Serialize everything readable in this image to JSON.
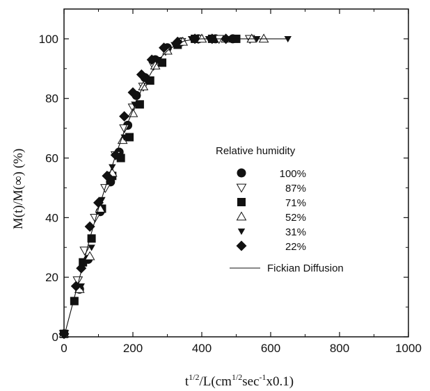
{
  "chart_data": {
    "type": "scatter",
    "xlabel": {
      "base": "t",
      "sup1": "1/2",
      "mid": "/L(cm",
      "sup2": "1/2",
      "mid2": "sec",
      "sup3": "-1",
      "tail": "x0.1)"
    },
    "ylabel": "M(t)/M(∞) (%)",
    "xlim": [
      0,
      1000
    ],
    "ylim": [
      0,
      110
    ],
    "xticks": [
      "0",
      "200",
      "400",
      "600",
      "800",
      "1000"
    ],
    "yticks": [
      "0",
      "20",
      "40",
      "60",
      "80",
      "100"
    ],
    "grid": false,
    "legend_placement": "right-middle",
    "legend_title": "Relative humidity",
    "series": [
      {
        "name": "100%",
        "marker": "circle-filled",
        "x": [
          0,
          45,
          70,
          105,
          135,
          160,
          185,
          210,
          235,
          265,
          300,
          340,
          390,
          440,
          490
        ],
        "y": [
          1,
          16,
          26,
          42,
          52,
          62,
          71,
          81,
          87,
          93,
          97,
          99,
          100,
          100,
          100
        ]
      },
      {
        "name": "87%",
        "marker": "triangle-down-open",
        "x": [
          0,
          40,
          60,
          90,
          120,
          150,
          175,
          200,
          230,
          260,
          295,
          340,
          390,
          450,
          540
        ],
        "y": [
          1,
          19,
          29,
          40,
          50,
          61,
          70,
          77,
          84,
          91,
          96,
          99,
          100,
          100,
          100
        ]
      },
      {
        "name": "71%",
        "marker": "square-filled",
        "x": [
          0,
          30,
          55,
          80,
          110,
          140,
          165,
          190,
          220,
          250,
          285,
          330,
          380,
          430,
          500
        ],
        "y": [
          1,
          12,
          25,
          33,
          43,
          54,
          60,
          67,
          78,
          86,
          92,
          98,
          100,
          100,
          100
        ]
      },
      {
        "name": "52%",
        "marker": "triangle-up-open",
        "x": [
          0,
          45,
          75,
          105,
          140,
          170,
          200,
          230,
          265,
          300,
          345,
          400,
          470,
          545,
          580
        ],
        "y": [
          1,
          16,
          27,
          43,
          55,
          66,
          75,
          84,
          91,
          96,
          99,
          100,
          100,
          100,
          100
        ]
      },
      {
        "name": "31%",
        "marker": "triangle-down-filled",
        "x": [
          0,
          50,
          80,
          110,
          140,
          175,
          205,
          240,
          275,
          320,
          370,
          420,
          480,
          560,
          650
        ],
        "y": [
          1,
          17,
          30,
          46,
          57,
          67,
          78,
          86,
          93,
          98,
          100,
          100,
          100,
          100,
          100
        ]
      },
      {
        "name": "22%",
        "marker": "diamond-filled",
        "x": [
          0,
          35,
          50,
          75,
          100,
          125,
          150,
          175,
          200,
          225,
          255,
          290,
          330,
          380,
          430,
          470
        ],
        "y": [
          1,
          17,
          23,
          37,
          45,
          54,
          61,
          74,
          82,
          88,
          93,
          97,
          99,
          100,
          100,
          100
        ]
      },
      {
        "name": "Fickian Diffusion",
        "marker": "line",
        "x": [
          0,
          25,
          50,
          75,
          100,
          125,
          150,
          175,
          200,
          225,
          250,
          275,
          300,
          325,
          350,
          375,
          400,
          450,
          550,
          650
        ],
        "y": [
          0,
          11,
          22,
          33,
          43,
          52,
          61,
          69,
          76,
          83,
          88,
          93,
          96,
          98,
          99.3,
          99.8,
          100,
          100,
          100,
          100
        ]
      }
    ]
  }
}
